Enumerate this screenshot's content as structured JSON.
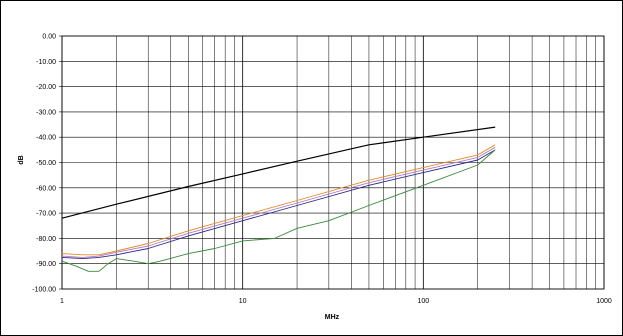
{
  "chart_data": {
    "type": "line",
    "title": "",
    "xlabel": "MHz",
    "ylabel": "dB",
    "x_scale": "log",
    "xlim": [
      1,
      1000
    ],
    "ylim": [
      -100,
      0
    ],
    "x_ticks": [
      "1",
      "10",
      "100",
      "1000"
    ],
    "y_ticks": [
      "0.00",
      "-10.00",
      "-20.00",
      "-30.00",
      "-40.00",
      "-50.00",
      "-60.00",
      "-70.00",
      "-80.00",
      "-90.00",
      "-100.00"
    ],
    "grid": true,
    "legend": "none",
    "series": [
      {
        "color": "#000000",
        "points": [
          [
            1,
            -72
          ],
          [
            2,
            -66.5
          ],
          [
            5,
            -59.5
          ],
          [
            10,
            -54.5
          ],
          [
            20,
            -49.5
          ],
          [
            50,
            -43
          ],
          [
            100,
            -40
          ],
          [
            250,
            -36
          ]
        ]
      },
      {
        "color": "#e08a2a",
        "points": [
          [
            1,
            -86
          ],
          [
            1.3,
            -86.5
          ],
          [
            1.6,
            -86.5
          ],
          [
            2,
            -85
          ],
          [
            3,
            -82
          ],
          [
            5,
            -77
          ],
          [
            10,
            -71
          ],
          [
            20,
            -65
          ],
          [
            50,
            -57
          ],
          [
            100,
            -52
          ],
          [
            200,
            -47
          ],
          [
            250,
            -43
          ]
        ]
      },
      {
        "color": "#b07cc6",
        "points": [
          [
            1,
            -87
          ],
          [
            1.3,
            -87.5
          ],
          [
            1.6,
            -87
          ],
          [
            2,
            -85.5
          ],
          [
            3,
            -83
          ],
          [
            5,
            -78
          ],
          [
            10,
            -72
          ],
          [
            20,
            -66
          ],
          [
            50,
            -58
          ],
          [
            100,
            -53
          ],
          [
            200,
            -48
          ],
          [
            250,
            -44
          ]
        ]
      },
      {
        "color": "#2a2a8a",
        "points": [
          [
            1,
            -87.5
          ],
          [
            1.3,
            -88
          ],
          [
            1.6,
            -87.5
          ],
          [
            2,
            -86.5
          ],
          [
            3,
            -84
          ],
          [
            5,
            -79
          ],
          [
            10,
            -73
          ],
          [
            20,
            -67
          ],
          [
            50,
            -59
          ],
          [
            100,
            -54
          ],
          [
            200,
            -49
          ],
          [
            250,
            -45
          ]
        ]
      },
      {
        "color": "#3a8a3a",
        "points": [
          [
            1,
            -89
          ],
          [
            1.2,
            -91
          ],
          [
            1.4,
            -93
          ],
          [
            1.6,
            -93
          ],
          [
            1.8,
            -90
          ],
          [
            2,
            -88
          ],
          [
            2.5,
            -89
          ],
          [
            3,
            -90
          ],
          [
            3.5,
            -89
          ],
          [
            5,
            -86
          ],
          [
            7,
            -84
          ],
          [
            10,
            -81
          ],
          [
            15,
            -80
          ],
          [
            20,
            -76
          ],
          [
            30,
            -73
          ],
          [
            50,
            -67
          ],
          [
            100,
            -59
          ],
          [
            200,
            -51
          ],
          [
            250,
            -45
          ]
        ]
      }
    ]
  }
}
